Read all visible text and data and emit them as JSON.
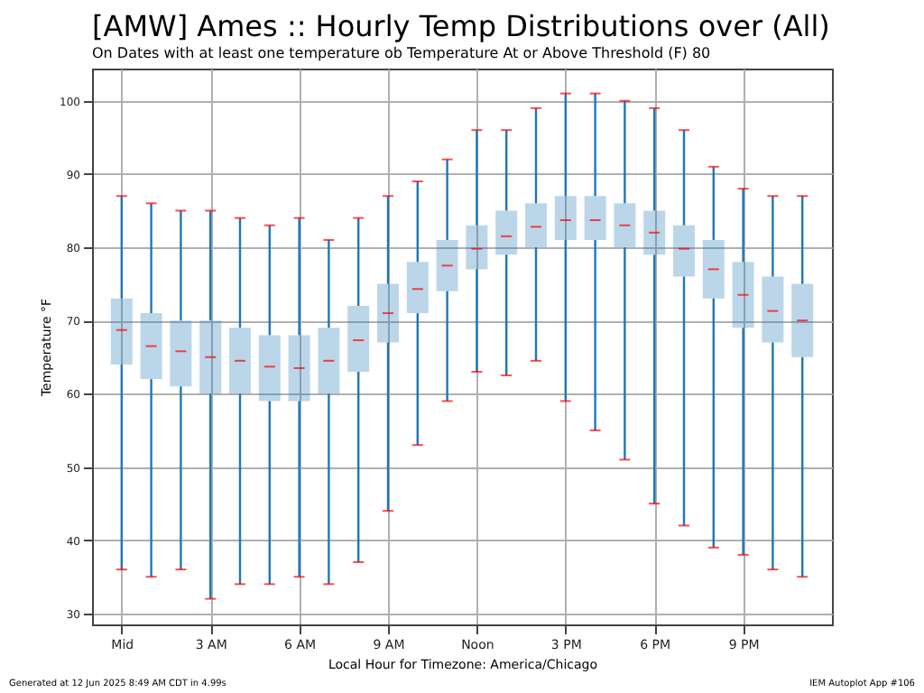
{
  "chart_data": {
    "type": "box",
    "title": "[AMW] Ames :: Hourly Temp Distributions over (All)",
    "subtitle": "On Dates with at least one temperature ob Temperature At or Above Threshold (F) 80",
    "xlabel": "Local Hour for Timezone: America/Chicago",
    "ylabel": "Temperature °F",
    "categories": [
      "Mid",
      null,
      null,
      "3 AM",
      null,
      null,
      "6 AM",
      null,
      null,
      "9 AM",
      null,
      null,
      "Noon",
      null,
      null,
      "3 PM",
      null,
      null,
      "6 PM",
      null,
      null,
      "9 PM",
      null,
      null
    ],
    "boxes": [
      {
        "low": 36,
        "q1": 64,
        "median": 68.7,
        "q3": 73,
        "high": 87
      },
      {
        "low": 35,
        "q1": 62,
        "median": 66.5,
        "q3": 71,
        "high": 86
      },
      {
        "low": 36,
        "q1": 61,
        "median": 65.8,
        "q3": 70,
        "high": 85
      },
      {
        "low": 32,
        "q1": 60,
        "median": 65,
        "q3": 70,
        "high": 85
      },
      {
        "low": 34,
        "q1": 60,
        "median": 64.5,
        "q3": 69,
        "high": 84
      },
      {
        "low": 34,
        "q1": 59,
        "median": 63.7,
        "q3": 68,
        "high": 83
      },
      {
        "low": 35,
        "q1": 59,
        "median": 63.5,
        "q3": 68,
        "high": 84
      },
      {
        "low": 34,
        "q1": 60,
        "median": 64.5,
        "q3": 69,
        "high": 81
      },
      {
        "low": 37,
        "q1": 63,
        "median": 67.3,
        "q3": 72,
        "high": 84
      },
      {
        "low": 44,
        "q1": 67,
        "median": 71,
        "q3": 75,
        "high": 87
      },
      {
        "low": 53,
        "q1": 71,
        "median": 74.3,
        "q3": 78,
        "high": 89
      },
      {
        "low": 59,
        "q1": 74,
        "median": 77.5,
        "q3": 81,
        "high": 92
      },
      {
        "low": 63,
        "q1": 77,
        "median": 79.8,
        "q3": 83,
        "high": 96
      },
      {
        "low": 62.5,
        "q1": 79,
        "median": 81.5,
        "q3": 85,
        "high": 96
      },
      {
        "low": 64.5,
        "q1": 80,
        "median": 82.8,
        "q3": 86,
        "high": 99
      },
      {
        "low": 59,
        "q1": 81,
        "median": 83.7,
        "q3": 87,
        "high": 101
      },
      {
        "low": 55,
        "q1": 81,
        "median": 83.7,
        "q3": 87,
        "high": 101
      },
      {
        "low": 51,
        "q1": 80,
        "median": 83,
        "q3": 86,
        "high": 100
      },
      {
        "low": 45,
        "q1": 79,
        "median": 82,
        "q3": 85,
        "high": 99
      },
      {
        "low": 42,
        "q1": 76,
        "median": 79.8,
        "q3": 83,
        "high": 96
      },
      {
        "low": 39,
        "q1": 73,
        "median": 77,
        "q3": 81,
        "high": 91
      },
      {
        "low": 38,
        "q1": 69,
        "median": 73.5,
        "q3": 78,
        "high": 88
      },
      {
        "low": 36,
        "q1": 67,
        "median": 71.3,
        "q3": 76,
        "high": 87
      },
      {
        "low": 35,
        "q1": 65,
        "median": 70,
        "q3": 75,
        "high": 87
      }
    ],
    "color": "#1f77b4",
    "ylim": [
      28.5,
      104.4
    ],
    "yticks": [
      30,
      40,
      50,
      60,
      70,
      80,
      90,
      100
    ],
    "grid": true,
    "annotations": [
      "Generated at 12 Jun 2025 8:49 AM CDT in 4.99s",
      "IEM Autoplot App #106"
    ]
  }
}
